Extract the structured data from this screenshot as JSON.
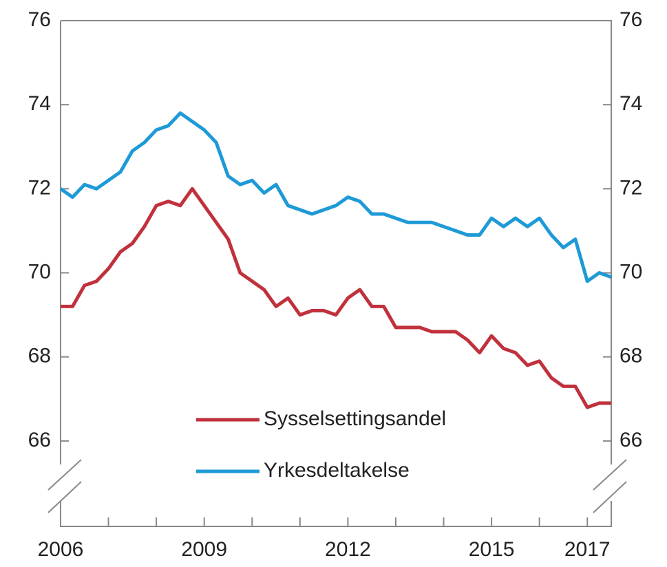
{
  "chart_data": {
    "type": "line",
    "x": [
      2006.0,
      2006.25,
      2006.5,
      2006.75,
      2007.0,
      2007.25,
      2007.5,
      2007.75,
      2008.0,
      2008.25,
      2008.5,
      2008.75,
      2009.0,
      2009.25,
      2009.5,
      2009.75,
      2010.0,
      2010.25,
      2010.5,
      2010.75,
      2011.0,
      2011.25,
      2011.5,
      2011.75,
      2012.0,
      2012.25,
      2012.5,
      2012.75,
      2013.0,
      2013.25,
      2013.5,
      2013.75,
      2014.0,
      2014.25,
      2014.5,
      2014.75,
      2015.0,
      2015.25,
      2015.5,
      2015.75,
      2016.0,
      2016.25,
      2016.5,
      2016.75,
      2017.0,
      2017.25,
      2017.5
    ],
    "series": [
      {
        "name": "Sysselsettingsandel",
        "color": "#c0313c",
        "values": [
          69.2,
          69.2,
          69.7,
          69.8,
          70.1,
          70.5,
          70.7,
          71.1,
          71.6,
          71.7,
          71.6,
          72.0,
          71.6,
          71.2,
          70.8,
          70.0,
          69.8,
          69.6,
          69.2,
          69.4,
          69.0,
          69.1,
          69.1,
          69.0,
          69.4,
          69.6,
          69.2,
          69.2,
          68.7,
          68.7,
          68.7,
          68.6,
          68.6,
          68.6,
          68.4,
          68.1,
          68.5,
          68.2,
          68.1,
          67.8,
          67.9,
          67.5,
          67.3,
          67.3,
          66.8,
          66.9,
          66.9
        ]
      },
      {
        "name": "Yrkesdeltakelse",
        "color": "#1e9ad6",
        "values": [
          72.0,
          71.8,
          72.1,
          72.0,
          72.2,
          72.4,
          72.9,
          73.1,
          73.4,
          73.5,
          73.8,
          73.6,
          73.4,
          73.1,
          72.3,
          72.1,
          72.2,
          71.9,
          72.1,
          71.6,
          71.5,
          71.4,
          71.5,
          71.6,
          71.8,
          71.7,
          71.4,
          71.4,
          71.3,
          71.2,
          71.2,
          71.2,
          71.1,
          71.0,
          70.9,
          70.9,
          71.3,
          71.1,
          71.3,
          71.1,
          71.3,
          70.9,
          70.6,
          70.8,
          69.8,
          70.0,
          69.9
        ]
      }
    ],
    "xlim": [
      2006,
      2017.5
    ],
    "xticks": [
      2006,
      2009,
      2012,
      2015,
      2017
    ],
    "x_minor_ticks": [
      2007,
      2008,
      2010,
      2011,
      2013,
      2014,
      2016
    ],
    "ylim": [
      64,
      76
    ],
    "yticks": [
      66,
      68,
      70,
      72,
      74,
      76
    ]
  }
}
